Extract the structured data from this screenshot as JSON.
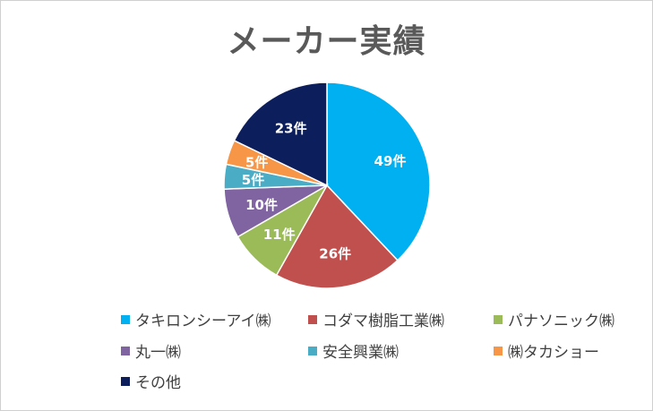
{
  "chart_data": {
    "type": "pie",
    "title": "メーカー実績",
    "unit": "件",
    "slices": [
      {
        "label": "タキロンシーアイ㈱",
        "value": 49,
        "display": "49件",
        "color": "#00b0f0"
      },
      {
        "label": "コダマ樹脂工業㈱",
        "value": 26,
        "display": "26件",
        "color": "#c0504d"
      },
      {
        "label": "パナソニック㈱",
        "value": 11,
        "display": "11件",
        "color": "#9bbb59"
      },
      {
        "label": "丸一㈱",
        "value": 10,
        "display": "10件",
        "color": "#8064a2"
      },
      {
        "label": "安全興業㈱",
        "value": 5,
        "display": "5件",
        "color": "#4bacc6"
      },
      {
        "label": "㈱タカショー",
        "value": 5,
        "display": "5件",
        "color": "#f79646"
      },
      {
        "label": "その他",
        "value": 23,
        "display": "23件",
        "color": "#0c1e5b"
      }
    ],
    "legend_position": "bottom"
  }
}
